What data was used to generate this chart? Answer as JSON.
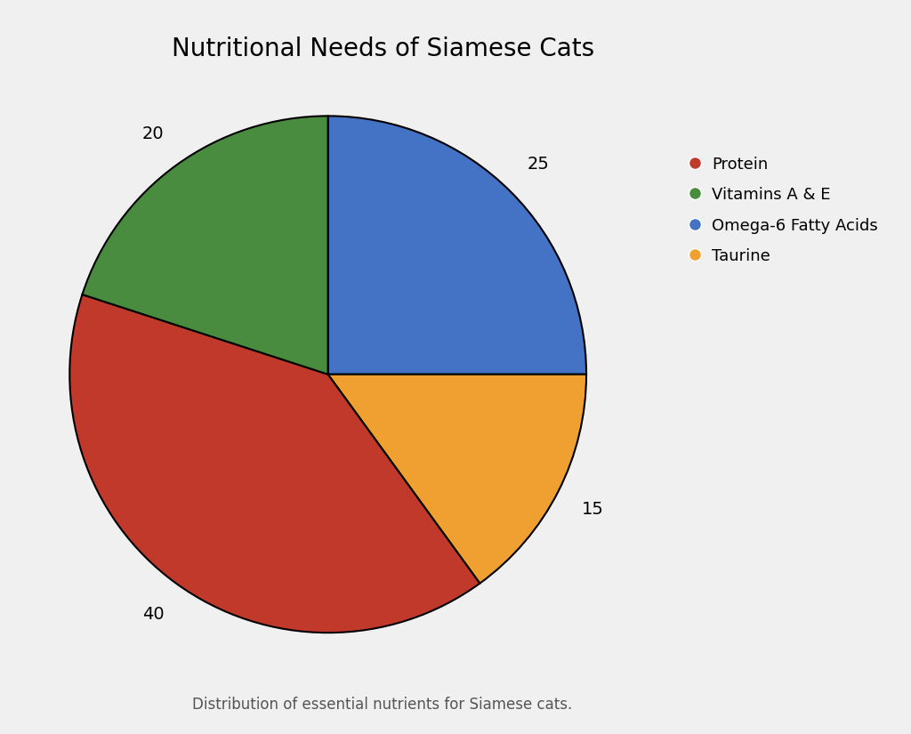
{
  "title": "Nutritional Needs of Siamese Cats",
  "subtitle": "Distribution of essential nutrients for Siamese cats.",
  "legend_labels": [
    "Protein",
    "Vitamins A & E",
    "Omega-6 Fatty Acids",
    "Taurine"
  ],
  "legend_colors": [
    "#c0392b",
    "#4a8c3f",
    "#4472c4",
    "#f0a030"
  ],
  "pie_order_labels": [
    "Omega-6 Fatty Acids",
    "Taurine",
    "Protein",
    "Vitamins A & E"
  ],
  "pie_order_values": [
    25,
    15,
    40,
    20
  ],
  "pie_order_colors": [
    "#4472c4",
    "#f0a030",
    "#c0392b",
    "#4a8c3f"
  ],
  "background_color": "#f0f0f0",
  "title_fontsize": 20,
  "legend_fontsize": 13,
  "label_fontsize": 14,
  "start_angle": 90,
  "label_distance": 1.15
}
